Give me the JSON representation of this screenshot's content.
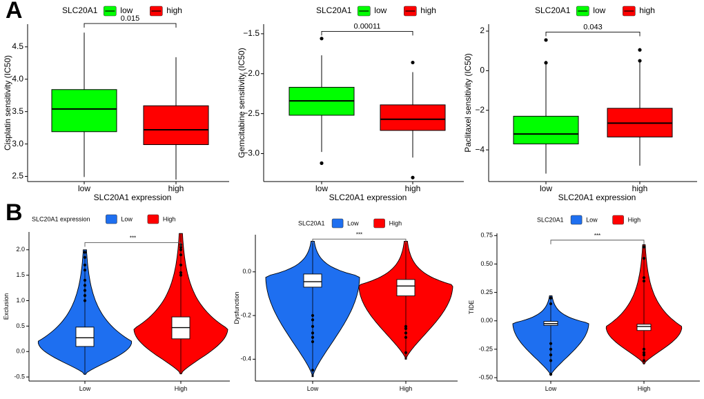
{
  "panel_labels": {
    "a": "A",
    "b": "B"
  },
  "colors": {
    "low_a": "#00ff00",
    "high_a": "#ff0000",
    "low_b": "#1e6ff0",
    "high_b": "#ff0000",
    "axis": "#333333"
  },
  "chart_data": [
    {
      "type": "box",
      "legend_title": "SLC20A1",
      "legend_items": [
        "low",
        "high"
      ],
      "categories": [
        "low",
        "high"
      ],
      "xlabel": "SLC20A1 expression",
      "ylabel": "Cisplatin sensitivity (IC50)",
      "ylim": [
        2.42,
        4.85
      ],
      "yticks": [
        2.5,
        3.0,
        3.5,
        4.0,
        4.5
      ],
      "ytick_labels": [
        "2.5",
        "3.0",
        "3.5",
        "4.0",
        "4.5"
      ],
      "boxes": [
        {
          "name": "low",
          "min": 2.49,
          "q1": 3.19,
          "median": 3.54,
          "q3": 3.84,
          "max": 4.72,
          "outliers": []
        },
        {
          "name": "high",
          "min": 2.45,
          "q1": 2.99,
          "median": 3.22,
          "q3": 3.59,
          "max": 4.34,
          "outliers": []
        }
      ],
      "pvalue": "0.015",
      "bracket_y": 4.86
    },
    {
      "type": "box",
      "legend_title": "SLC20A1",
      "legend_items": [
        "low",
        "high"
      ],
      "categories": [
        "low",
        "high"
      ],
      "xlabel": "SLC20A1 expression",
      "ylabel": "Gemcitabine sensitivity (IC50)",
      "ylim": [
        -3.35,
        -1.38
      ],
      "yticks": [
        -3.0,
        -2.5,
        -2.0,
        -1.5
      ],
      "ytick_labels": [
        "−3.0",
        "−2.5",
        "−2.0",
        "−1.5"
      ],
      "boxes": [
        {
          "name": "low",
          "min": -2.98,
          "q1": -2.52,
          "median": -2.34,
          "q3": -2.17,
          "max": -1.77,
          "outliers": [
            -1.56,
            -3.12
          ]
        },
        {
          "name": "high",
          "min": -3.05,
          "q1": -2.71,
          "median": -2.57,
          "q3": -2.39,
          "max": -1.98,
          "outliers": [
            -1.86,
            -3.3
          ]
        }
      ],
      "pvalue": "0.00011",
      "bracket_y": -1.47
    },
    {
      "type": "box",
      "legend_title": "SLC20A1",
      "legend_items": [
        "low",
        "high"
      ],
      "categories": [
        "low",
        "high"
      ],
      "xlabel": "SLC20A1 expression",
      "ylabel": "Paclitaxel sensitivity (IC50)",
      "ylim": [
        -5.6,
        2.35
      ],
      "yticks": [
        -4,
        -2,
        0,
        2
      ],
      "ytick_labels": [
        "−4",
        "−2",
        "0",
        "2"
      ],
      "boxes": [
        {
          "name": "low",
          "min": -5.2,
          "q1": -3.7,
          "median": -3.2,
          "q3": -2.3,
          "max": 0.5,
          "outliers": [
            1.55,
            0.4
          ]
        },
        {
          "name": "high",
          "min": -4.8,
          "q1": -3.35,
          "median": -2.65,
          "q3": -1.9,
          "max": 0.5,
          "outliers": [
            1.05,
            0.5
          ]
        }
      ],
      "pvalue": "0.043",
      "bracket_y": 1.95
    },
    {
      "type": "violin",
      "legend_title": "SLC20A1 expression",
      "legend_items": [
        "Low",
        "High"
      ],
      "categories": [
        "Low",
        "High"
      ],
      "ylabel": "Exclusion",
      "ylim": [
        -0.58,
        2.35
      ],
      "yticks": [
        -0.5,
        0.0,
        0.5,
        1.0,
        1.5,
        2.0
      ],
      "ytick_labels": [
        "-0.5",
        "0.0",
        "0.5",
        "1.0",
        "1.5",
        "2.0"
      ],
      "groups": [
        {
          "name": "Low",
          "min": -0.45,
          "max": 2.0,
          "q1": 0.1,
          "median": 0.27,
          "q3": 0.48,
          "mode": 0.2,
          "outliers": [
            1.0,
            1.1,
            1.2,
            1.3,
            1.4,
            1.6,
            1.7,
            1.85,
            1.95
          ]
        },
        {
          "name": "High",
          "min": -0.44,
          "max": 2.32,
          "q1": 0.25,
          "median": 0.47,
          "q3": 0.68,
          "mode": 0.45,
          "outliers": [
            1.5,
            1.55,
            1.7,
            1.9,
            2.0,
            2.05,
            2.1
          ]
        }
      ],
      "significance": "***",
      "bracket_y": 2.14
    },
    {
      "type": "violin",
      "legend_title": "SLC20A1",
      "legend_items": [
        "Low",
        "High"
      ],
      "categories": [
        "Low",
        "High"
      ],
      "ylabel": "Dysfunction",
      "ylim": [
        -0.5,
        0.17
      ],
      "yticks": [
        -0.4,
        -0.2,
        0.0
      ],
      "ytick_labels": [
        "-0.4",
        "-0.2",
        "0.0"
      ],
      "groups": [
        {
          "name": "Low",
          "min": -0.48,
          "max": 0.14,
          "q1": -0.07,
          "median": -0.045,
          "q3": -0.01,
          "mode": -0.02,
          "outliers": [
            -0.2,
            -0.22,
            -0.25,
            -0.28,
            -0.3,
            -0.32,
            -0.45
          ]
        },
        {
          "name": "High",
          "min": -0.4,
          "max": 0.14,
          "q1": -0.11,
          "median": -0.065,
          "q3": -0.035,
          "mode": -0.06,
          "outliers": [
            -0.25,
            -0.26,
            -0.28,
            -0.3,
            -0.37
          ]
        }
      ],
      "significance": "***",
      "bracket_y": 0.15
    },
    {
      "type": "violin",
      "legend_title": "SLC20A1",
      "legend_items": [
        "Low",
        "High"
      ],
      "categories": [
        "Low",
        "High"
      ],
      "ylabel": "TIDE",
      "ylim": [
        -0.53,
        0.77
      ],
      "yticks": [
        -0.5,
        -0.25,
        0.0,
        0.25,
        0.5,
        0.75
      ],
      "ytick_labels": [
        "-0.50",
        "-0.25",
        "0.00",
        "0.25",
        "0.50",
        "0.75"
      ],
      "groups": [
        {
          "name": "Low",
          "min": -0.48,
          "max": 0.22,
          "q1": -0.04,
          "median": -0.025,
          "q3": -0.005,
          "mode": -0.02,
          "outliers": [
            0.2,
            0.15,
            -0.2,
            -0.25,
            -0.3,
            -0.35,
            -0.47
          ]
        },
        {
          "name": "High",
          "min": -0.38,
          "max": 0.67,
          "q1": -0.085,
          "median": -0.05,
          "q3": -0.03,
          "mode": -0.05,
          "outliers": [
            0.65,
            0.55,
            0.38,
            0.35,
            -0.25,
            -0.28,
            -0.3,
            -0.35
          ]
        }
      ],
      "significance": "***",
      "bracket_y": 0.71
    }
  ]
}
